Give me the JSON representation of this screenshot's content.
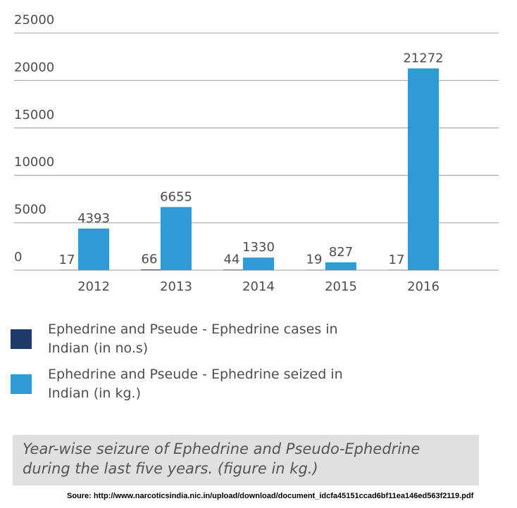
{
  "chart_data": {
    "type": "bar",
    "categories": [
      "2012",
      "2013",
      "2014",
      "2015",
      "2016"
    ],
    "series": [
      {
        "name": "Ephedrine and Pseude - Ephedrine cases in Indian (in no.s)",
        "color": "#1f3a68",
        "values": [
          17,
          66,
          44,
          19,
          17
        ]
      },
      {
        "name": "Ephedrine and Pseude - Ephedrine seized in Indian (in kg.)",
        "color": "#2e9bd6",
        "values": [
          4393,
          6655,
          1330,
          827,
          21272
        ]
      }
    ],
    "ylim": [
      0,
      25000
    ],
    "yticks": [
      0,
      5000,
      10000,
      15000,
      20000,
      25000
    ],
    "grid": true,
    "caption": "Year-wise seizure of Ephedrine and Pseudo-Ephedrine during the last five years. (figure in kg.)",
    "source": "Soure: http://www.narcoticsindia.nic.in/upload/download/document_idcfa45151ccad6bf11ea146ed563f2119.pdf"
  }
}
